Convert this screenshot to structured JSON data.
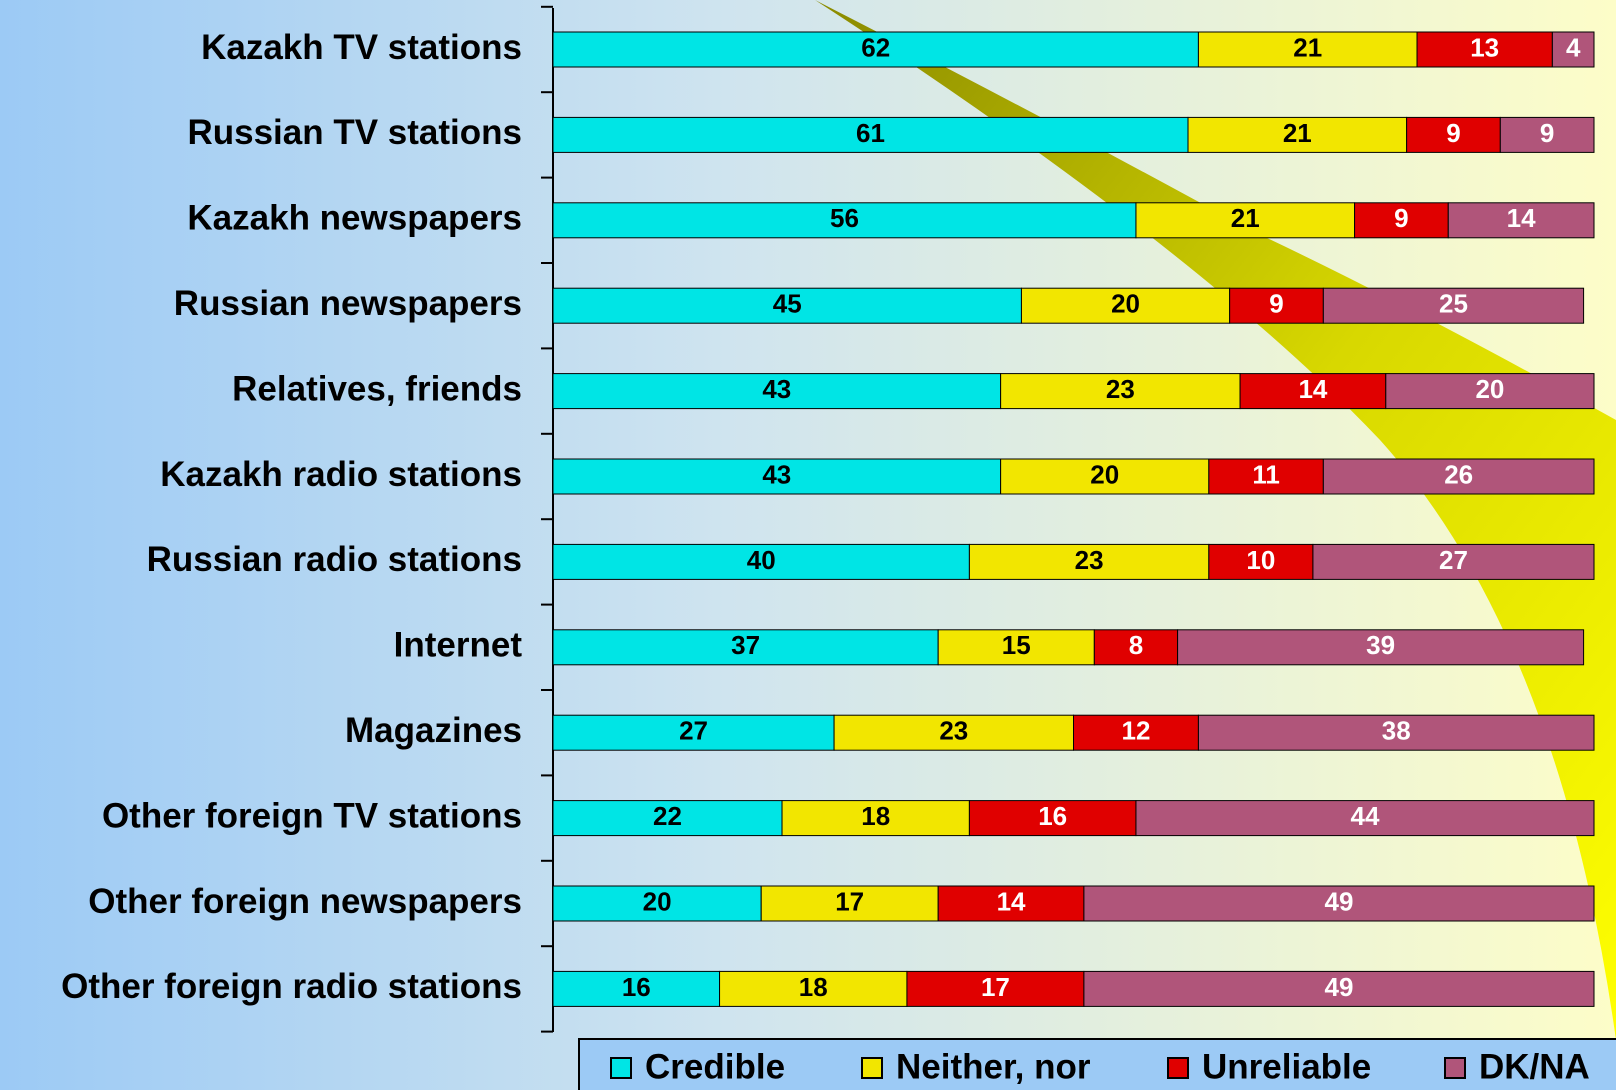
{
  "chart_data": {
    "type": "stacked_bar_horizontal",
    "categories": [
      "Kazakh TV stations",
      "Russian TV stations",
      "Kazakh newspapers",
      "Russian newspapers",
      "Relatives, friends",
      "Kazakh radio stations",
      "Russian radio stations",
      "Internet",
      "Magazines",
      "Other foreign TV stations",
      "Other foreign newspapers",
      "Other foreign radio stations"
    ],
    "series": [
      {
        "name": "Credible",
        "color": "#00e5e5",
        "values": [
          62,
          61,
          56,
          45,
          43,
          43,
          40,
          37,
          27,
          22,
          20,
          16
        ]
      },
      {
        "name": "Neither, nor",
        "color": "#f2e600",
        "values": [
          21,
          21,
          21,
          20,
          23,
          20,
          23,
          15,
          23,
          18,
          17,
          18
        ]
      },
      {
        "name": "Unreliable",
        "color": "#e00000",
        "values": [
          13,
          9,
          9,
          9,
          14,
          11,
          10,
          8,
          12,
          16,
          14,
          17
        ]
      },
      {
        "name": "DK/NA",
        "color": "#b0557a",
        "values": [
          4,
          9,
          14,
          25,
          20,
          26,
          27,
          39,
          38,
          44,
          49,
          49
        ]
      }
    ],
    "xlim": [
      0,
      100
    ]
  }
}
